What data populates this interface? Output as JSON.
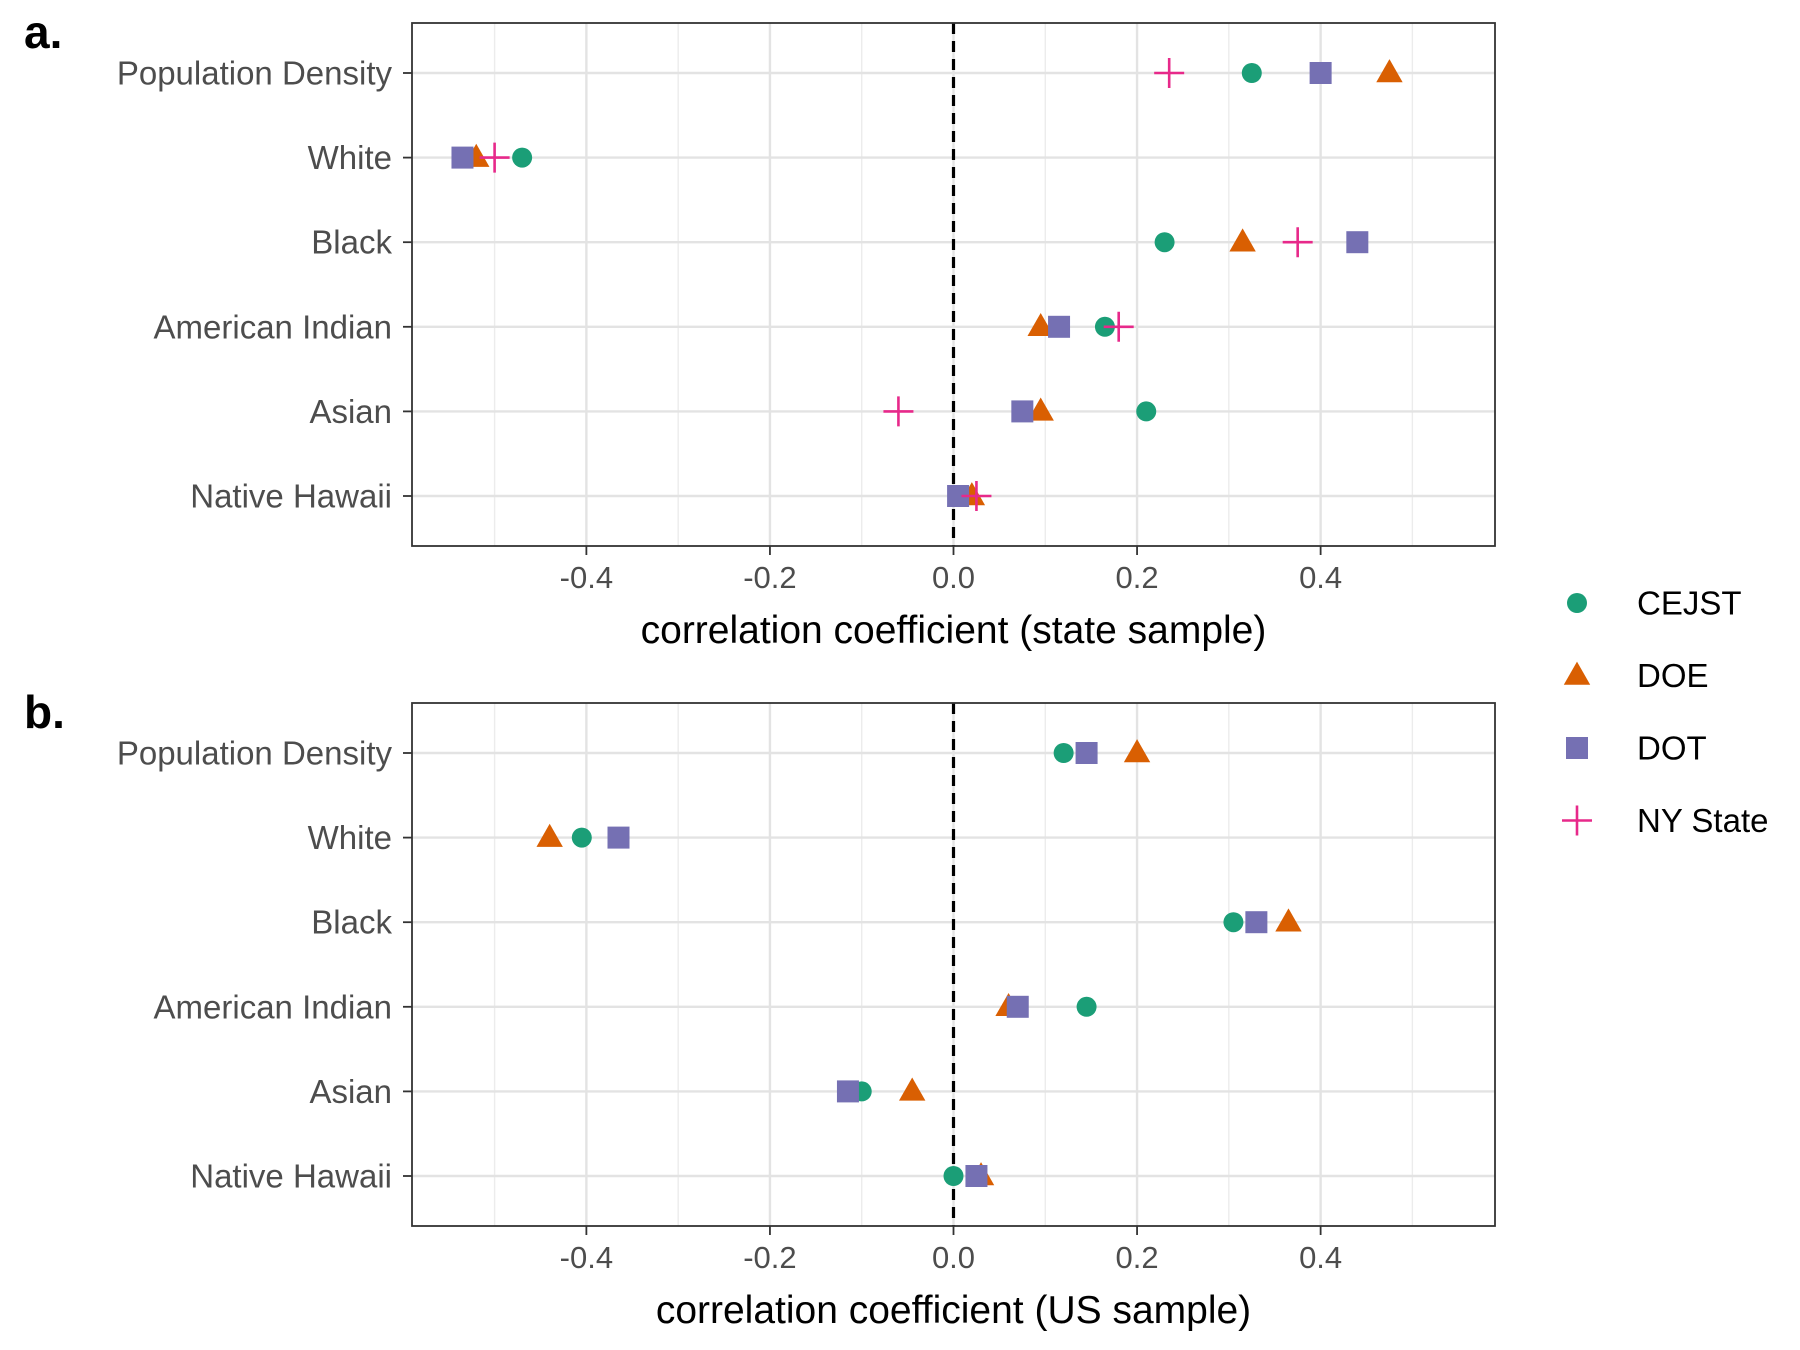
{
  "series_colors": {
    "CEJST": "#1b9e77",
    "DOE": "#d95f02",
    "DOT": "#7570b3",
    "NY State": "#e7298a"
  },
  "series_shapes": {
    "CEJST": "circle",
    "DOE": "triangle",
    "DOT": "square",
    "NY State": "plus"
  },
  "legend": {
    "placement": "right",
    "entries": [
      "CEJST",
      "DOE",
      "DOT",
      "NY State"
    ]
  },
  "chart_data": [
    {
      "type": "scatter",
      "panel_label": "a.",
      "xlabel": "correlation coefficient (state sample)",
      "ylabel": "",
      "xlim": [
        -0.59,
        0.59
      ],
      "x_ticks": [
        -0.4,
        -0.2,
        0.0,
        0.2,
        0.4
      ],
      "x_tick_labels": [
        "-0.4",
        "-0.2",
        "0.0",
        "0.2",
        "0.4"
      ],
      "grid": true,
      "reference_line": 0,
      "categories": [
        "Population Density",
        "White",
        "Black",
        "American Indian",
        "Asian",
        "Native Hawaii"
      ],
      "series": [
        {
          "name": "CEJST",
          "values": [
            0.325,
            -0.47,
            0.23,
            0.165,
            0.21,
            0.005
          ]
        },
        {
          "name": "DOE",
          "values": [
            0.475,
            -0.52,
            0.315,
            0.095,
            0.095,
            0.02
          ]
        },
        {
          "name": "DOT",
          "values": [
            0.4,
            -0.535,
            0.44,
            0.115,
            0.075,
            0.005
          ]
        },
        {
          "name": "NY State",
          "values": [
            0.235,
            -0.5,
            0.375,
            0.18,
            -0.06,
            0.025
          ]
        }
      ]
    },
    {
      "type": "scatter",
      "panel_label": "b.",
      "xlabel": "correlation coefficient (US sample)",
      "ylabel": "",
      "xlim": [
        -0.59,
        0.59
      ],
      "x_ticks": [
        -0.4,
        -0.2,
        0.0,
        0.2,
        0.4
      ],
      "x_tick_labels": [
        "-0.4",
        "-0.2",
        "0.0",
        "0.2",
        "0.4"
      ],
      "grid": true,
      "reference_line": 0,
      "categories": [
        "Population Density",
        "White",
        "Black",
        "American Indian",
        "Asian",
        "Native Hawaii"
      ],
      "series": [
        {
          "name": "CEJST",
          "values": [
            0.12,
            -0.405,
            0.305,
            0.145,
            -0.1,
            0.0
          ]
        },
        {
          "name": "DOE",
          "values": [
            0.2,
            -0.44,
            0.365,
            0.06,
            -0.045,
            0.03
          ]
        },
        {
          "name": "DOT",
          "values": [
            0.145,
            -0.365,
            0.33,
            0.07,
            -0.115,
            0.025
          ]
        }
      ]
    }
  ]
}
